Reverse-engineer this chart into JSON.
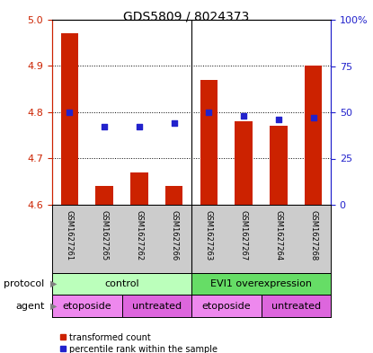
{
  "title": "GDS5809 / 8024373",
  "samples": [
    "GSM1627261",
    "GSM1627265",
    "GSM1627262",
    "GSM1627266",
    "GSM1627263",
    "GSM1627267",
    "GSM1627264",
    "GSM1627268"
  ],
  "bar_values": [
    4.97,
    4.64,
    4.67,
    4.64,
    4.87,
    4.78,
    4.77,
    4.9
  ],
  "dot_values": [
    50,
    42,
    42,
    44,
    50,
    48,
    46,
    47
  ],
  "y_min": 4.6,
  "y_max": 5.0,
  "y_ticks": [
    4.6,
    4.7,
    4.8,
    4.9,
    5.0
  ],
  "right_y_ticks": [
    0,
    25,
    50,
    75,
    100
  ],
  "bar_color": "#cc2200",
  "dot_color": "#2222cc",
  "bar_width": 0.5,
  "protocol_color_left": "#bbffbb",
  "protocol_color_right": "#66dd66",
  "agent_color_etoposide": "#ee88ee",
  "agent_color_untreated": "#dd66dd",
  "xlabel_color": "#cc2200",
  "right_axis_color": "#2222cc",
  "grid_color": "#000000",
  "legend_red_label": "transformed count",
  "legend_blue_label": "percentile rank within the sample",
  "label_bg": "#cccccc",
  "fig_width": 4.15,
  "fig_height": 3.93,
  "dpi": 100
}
